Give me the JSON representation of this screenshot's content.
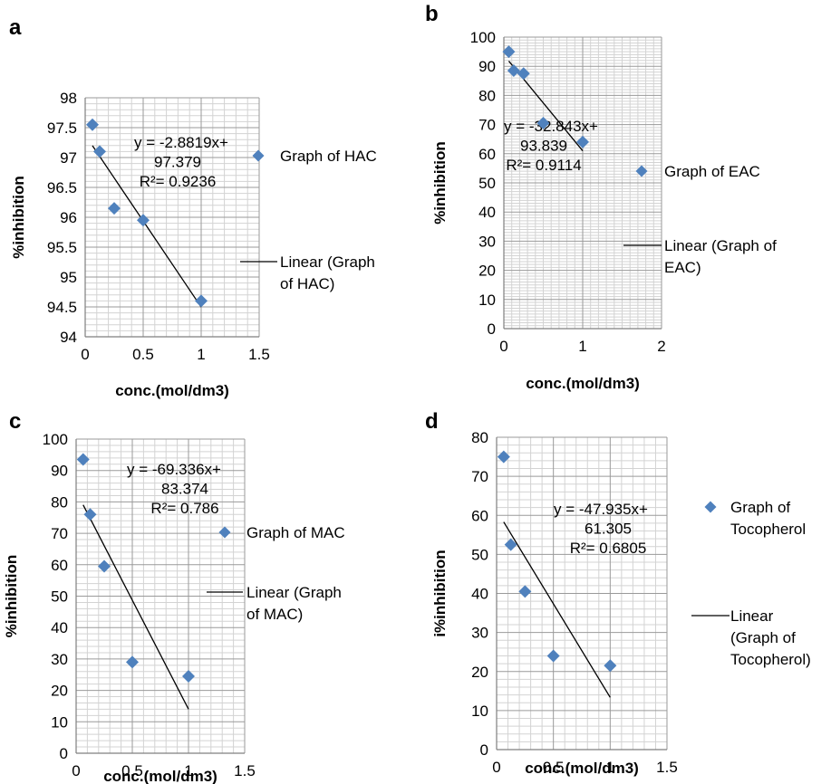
{
  "chart_data": [
    {
      "panel": "a",
      "type": "scatter",
      "xlabel": "conc.(mol/dm3)",
      "ylabel": "%inhibition",
      "xlim": [
        0,
        1.5
      ],
      "ylim": [
        94,
        98
      ],
      "xticks": [
        "0",
        "0.5",
        "1",
        "1.5"
      ],
      "yticks": [
        "94",
        "94.5",
        "95",
        "95.5",
        "96",
        "96.5",
        "97",
        "97.5",
        "98"
      ],
      "grid": true,
      "legend_position": "right",
      "series": [
        {
          "name": "Graph of HAC",
          "kind": "scatter",
          "color": "#4f81bd",
          "x": [
            0.0625,
            0.125,
            0.25,
            0.5,
            1.0
          ],
          "y": [
            97.55,
            97.1,
            96.15,
            95.95,
            94.6
          ]
        },
        {
          "name": "Linear (Graph of HAC)",
          "kind": "trendline",
          "color": "#000000",
          "slope": -2.8819,
          "intercept": 97.379,
          "x_range": [
            0.0625,
            1.0
          ]
        }
      ],
      "equation_lines": [
        "y = -2.8819x+",
        "97.379",
        "R²= 0.9236"
      ]
    },
    {
      "panel": "b",
      "type": "scatter",
      "xlabel": "conc.(mol/dm3)",
      "ylabel": "%inhibition",
      "xlim": [
        0,
        2
      ],
      "ylim": [
        0,
        100
      ],
      "xticks": [
        "0",
        "1",
        "2"
      ],
      "yticks": [
        "0",
        "10",
        "20",
        "30",
        "40",
        "50",
        "60",
        "70",
        "80",
        "90",
        "100"
      ],
      "grid": true,
      "legend_position": "right",
      "series": [
        {
          "name": "Graph of EAC",
          "kind": "scatter",
          "color": "#4f81bd",
          "x": [
            0.0625,
            0.125,
            0.25,
            0.5,
            1.0
          ],
          "y": [
            95,
            88.5,
            87.5,
            70.5,
            64
          ]
        },
        {
          "name": "Linear (Graph of EAC)",
          "kind": "trendline",
          "color": "#000000",
          "slope": -32.843,
          "intercept": 93.839,
          "x_range": [
            0.0625,
            1.0
          ]
        }
      ],
      "equation_lines": [
        "y = -32.843x+",
        "93.839",
        "R²= 0.9114"
      ]
    },
    {
      "panel": "c",
      "type": "scatter",
      "xlabel": "conc.(mol/dm3)",
      "ylabel": "%inhibition",
      "xlim": [
        0,
        1.5
      ],
      "ylim": [
        0,
        100
      ],
      "xticks": [
        "0",
        "0.5",
        "1",
        "1.5"
      ],
      "yticks": [
        "0",
        "10",
        "20",
        "30",
        "40",
        "50",
        "60",
        "70",
        "80",
        "90",
        "100"
      ],
      "grid": true,
      "legend_position": "right",
      "series": [
        {
          "name": "Graph of MAC",
          "kind": "scatter",
          "color": "#4f81bd",
          "x": [
            0.0625,
            0.125,
            0.25,
            0.5,
            1.0
          ],
          "y": [
            93.5,
            76,
            59.5,
            29,
            24.5
          ]
        },
        {
          "name": "Linear (Graph of MAC)",
          "kind": "trendline",
          "color": "#000000",
          "slope": -69.336,
          "intercept": 83.374,
          "x_range": [
            0.0625,
            1.0
          ]
        }
      ],
      "equation_lines": [
        "y = -69.336x+",
        "83.374",
        "R²= 0.786"
      ]
    },
    {
      "panel": "d",
      "type": "scatter",
      "xlabel": "conc.(mol/dm3)",
      "ylabel": "i%inhibition",
      "xlim": [
        0,
        1.5
      ],
      "ylim": [
        0,
        80
      ],
      "xticks": [
        "0",
        "0.5",
        "1",
        "1.5"
      ],
      "yticks": [
        "0",
        "10",
        "20",
        "30",
        "40",
        "50",
        "60",
        "70",
        "80"
      ],
      "grid": true,
      "legend_position": "right",
      "series": [
        {
          "name": "Graph of Tocopherol",
          "kind": "scatter",
          "color": "#4f81bd",
          "x": [
            0.0625,
            0.125,
            0.25,
            0.5,
            1.0
          ],
          "y": [
            75,
            52.5,
            40.5,
            24,
            21.5
          ]
        },
        {
          "name": "Linear (Graph of Tocopherol)",
          "kind": "trendline",
          "color": "#000000",
          "slope": -47.935,
          "intercept": 61.305,
          "x_range": [
            0.0625,
            1.0
          ]
        }
      ],
      "equation_lines": [
        "y = -47.935x+",
        "61.305",
        "R²= 0.6805"
      ]
    }
  ]
}
